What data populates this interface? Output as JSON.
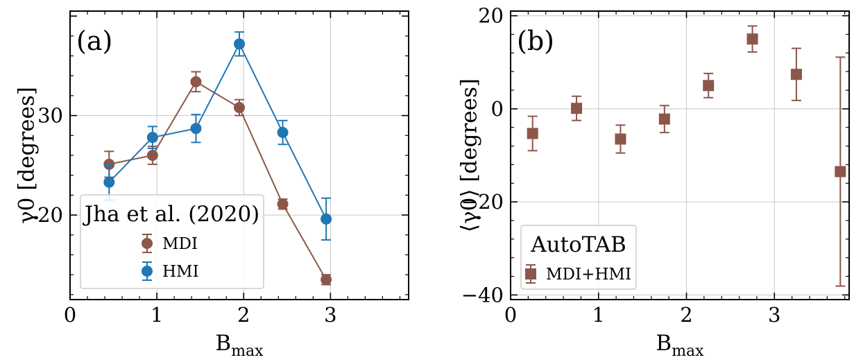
{
  "colors": {
    "mdi": "#8c564b",
    "hmi": "#1f77b4",
    "grid": "#c8c8c8"
  },
  "chart_data": [
    {
      "type": "line",
      "panel_label": "(a)",
      "xlabel": "B",
      "xlabel_subscript": "max",
      "ylabel": "γ0 [degrees]",
      "xlim": [
        0,
        3.9
      ],
      "ylim": [
        11.5,
        40.5
      ],
      "xticks": [
        0,
        1,
        2,
        3
      ],
      "yticks": [
        20,
        30
      ],
      "grid": true,
      "legend": {
        "title": "Jha et al. (2020)",
        "placement": "lower-left"
      },
      "series": [
        {
          "name": "MDI",
          "color": "#8c564b",
          "marker": "circle",
          "x": [
            0.45,
            0.95,
            1.45,
            1.95,
            2.45,
            2.95
          ],
          "y": [
            25.1,
            26.0,
            33.4,
            30.8,
            21.1,
            13.5
          ],
          "err": [
            1.3,
            0.9,
            1.0,
            0.8,
            0.5,
            0.5
          ]
        },
        {
          "name": "HMI",
          "color": "#1f77b4",
          "marker": "circle",
          "x": [
            0.45,
            0.95,
            1.45,
            1.95,
            2.45,
            2.95
          ],
          "y": [
            23.3,
            27.8,
            28.7,
            37.2,
            28.3,
            19.6
          ],
          "err": [
            1.8,
            1.1,
            1.4,
            1.2,
            1.2,
            2.1
          ]
        }
      ]
    },
    {
      "type": "scatter",
      "panel_label": "(b)",
      "xlabel": "B",
      "xlabel_subscript": "max",
      "ylabel": "⟨γ0⟩ [degrees]",
      "xlim": [
        0,
        3.85
      ],
      "ylim": [
        -41,
        21
      ],
      "xticks": [
        0,
        1,
        2,
        3
      ],
      "yticks": [
        -40,
        -20,
        0,
        20
      ],
      "grid": true,
      "legend": {
        "title": "AutoTAB",
        "placement": "lower-left"
      },
      "series": [
        {
          "name": "MDI+HMI",
          "color": "#8c564b",
          "marker": "square",
          "x": [
            0.25,
            0.75,
            1.25,
            1.75,
            2.25,
            2.75,
            3.25,
            3.75
          ],
          "y": [
            -5.3,
            0.1,
            -6.5,
            -2.2,
            5.0,
            15.0,
            7.4,
            -13.5
          ],
          "err": [
            3.7,
            2.6,
            3.0,
            2.9,
            2.6,
            2.8,
            5.6,
            24.6
          ]
        }
      ]
    }
  ]
}
